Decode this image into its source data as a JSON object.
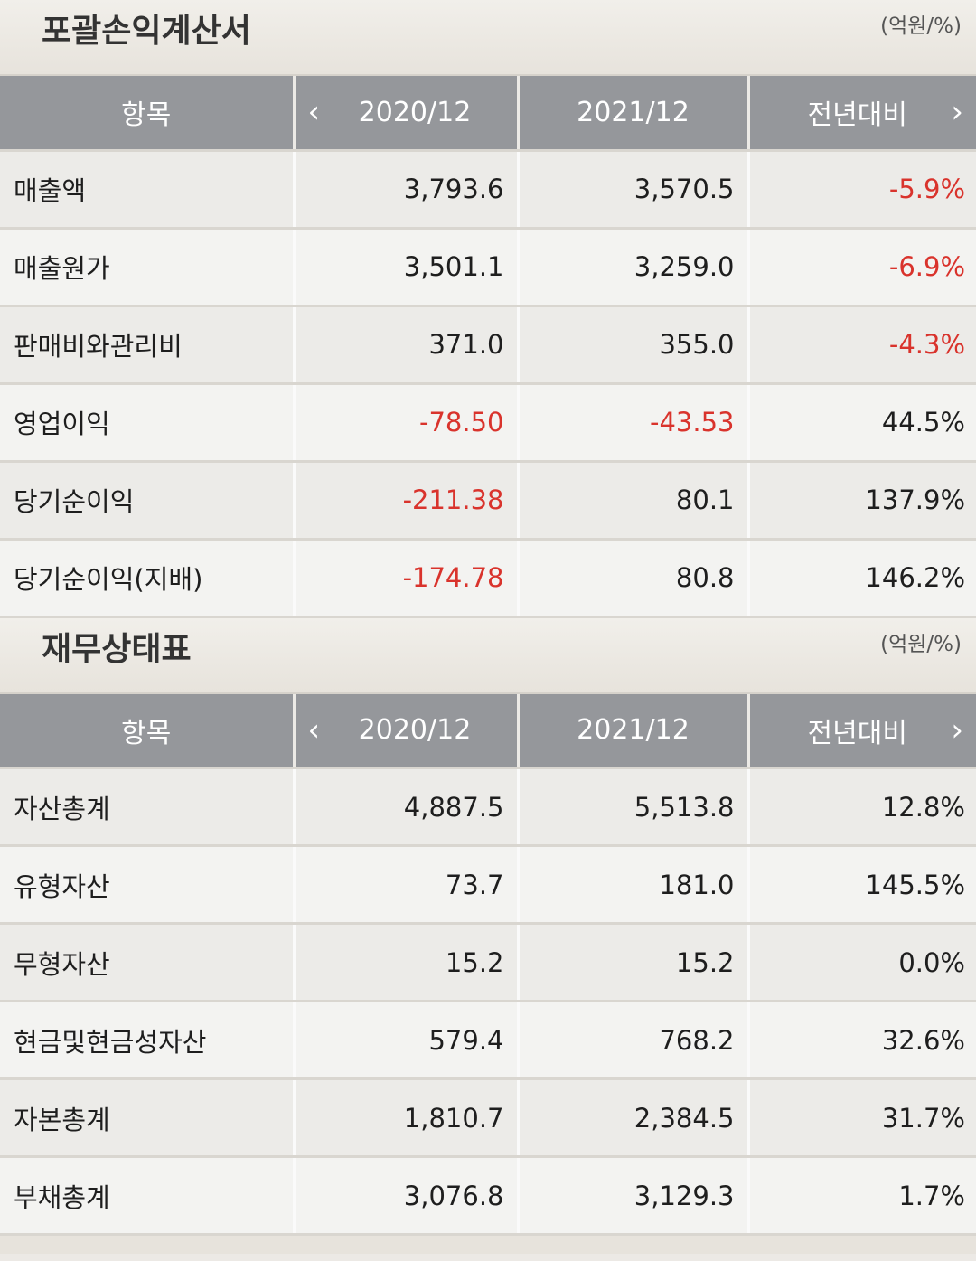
{
  "income": {
    "title": "포괄손익계산서",
    "unit": "(억원/%)",
    "headers": [
      "항목",
      "2020/12",
      "2021/12",
      "전년대비"
    ],
    "rows": [
      {
        "item": "매출액",
        "v2020": "3,793.6",
        "v2021": "3,570.5",
        "yoy": "-5.9%"
      },
      {
        "item": "매출원가",
        "v2020": "3,501.1",
        "v2021": "3,259.0",
        "yoy": "-6.9%"
      },
      {
        "item": "판매비와관리비",
        "v2020": "371.0",
        "v2021": "355.0",
        "yoy": "-4.3%"
      },
      {
        "item": "영업이익",
        "v2020": "-78.50",
        "v2021": "-43.53",
        "yoy": "44.5%"
      },
      {
        "item": "당기순이익",
        "v2020": "-211.38",
        "v2021": "80.1",
        "yoy": "137.9%"
      },
      {
        "item": "당기순이익(지배)",
        "v2020": "-174.78",
        "v2021": "80.8",
        "yoy": "146.2%"
      }
    ]
  },
  "balance": {
    "title": "재무상태표",
    "unit": "(억원/%)",
    "headers": [
      "항목",
      "2020/12",
      "2021/12",
      "전년대비"
    ],
    "rows": [
      {
        "item": "자산총계",
        "v2020": "4,887.5",
        "v2021": "5,513.8",
        "yoy": "12.8%"
      },
      {
        "item": "유형자산",
        "v2020": "73.7",
        "v2021": "181.0",
        "yoy": "145.5%"
      },
      {
        "item": "무형자산",
        "v2020": "15.2",
        "v2021": "15.2",
        "yoy": "0.0%"
      },
      {
        "item": "현금및현금성자산",
        "v2020": "579.4",
        "v2021": "768.2",
        "yoy": "32.6%"
      },
      {
        "item": "자본총계",
        "v2020": "1,810.7",
        "v2021": "2,384.5",
        "yoy": "31.7%"
      },
      {
        "item": "부채총계",
        "v2020": "3,076.8",
        "v2021": "3,129.3",
        "yoy": "1.7%"
      }
    ]
  },
  "icons": {
    "prev": "chevron-left-icon",
    "next": "chevron-right-icon"
  },
  "colors": {
    "negative": "#d9332c",
    "header_bg": "#95979b",
    "header_text": "#ffffff"
  }
}
